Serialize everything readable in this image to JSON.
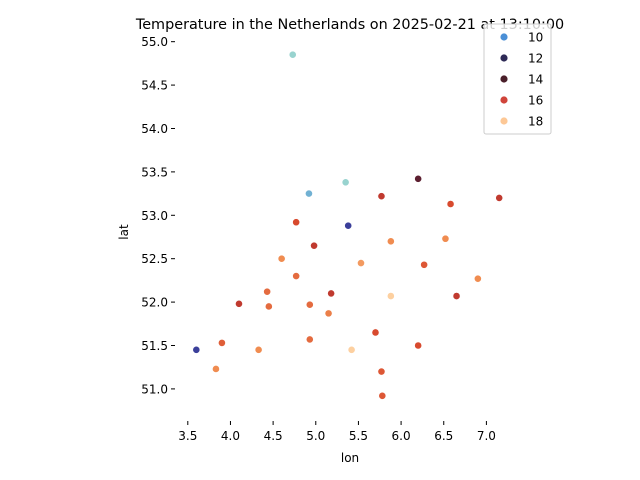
{
  "chart_data": {
    "type": "scatter",
    "title": "Temperature in the Netherlands on 2025-02-21 at 13:10:00",
    "xlabel": "lon",
    "ylabel": "lat",
    "xlim": [
      3.35,
      7.3
    ],
    "ylim": [
      50.78,
      55.1
    ],
    "xticks": [
      3.5,
      4.0,
      4.5,
      5.0,
      5.5,
      6.0,
      6.5,
      7.0
    ],
    "xtick_labels": [
      "3.5",
      "4.0",
      "4.5",
      "5.0",
      "5.5",
      "6.0",
      "6.5",
      "7.0"
    ],
    "yticks": [
      51.0,
      51.5,
      52.0,
      52.5,
      53.0,
      53.5,
      54.0,
      54.5,
      55.0
    ],
    "ytick_labels": [
      "51.0",
      "51.5",
      "52.0",
      "52.5",
      "53.0",
      "53.5",
      "54.0",
      "54.5",
      "55.0"
    ],
    "grid": false,
    "legend_position": "top-right",
    "color_scale": {
      "stops": [
        {
          "value": 9,
          "color": "#3a7fd0"
        },
        {
          "value": 10,
          "color": "#4a8fd6"
        },
        {
          "value": 11,
          "color": "#98d3cf"
        },
        {
          "value": 12,
          "color": "#3b3f9a"
        },
        {
          "value": 13,
          "color": "#4a2a4f"
        },
        {
          "value": 14,
          "color": "#5c1f30"
        },
        {
          "value": 15,
          "color": "#a82a30"
        },
        {
          "value": 16,
          "color": "#d84a2e"
        },
        {
          "value": 17,
          "color": "#f08c50"
        },
        {
          "value": 18,
          "color": "#fdd0a0"
        }
      ]
    },
    "legend_entries": [
      {
        "label": "10",
        "color": "#4a8fd6"
      },
      {
        "label": "12",
        "color": "#2e2a56"
      },
      {
        "label": "14",
        "color": "#4a1f2a"
      },
      {
        "label": "16",
        "color": "#d0443a"
      },
      {
        "label": "18",
        "color": "#fdc896"
      }
    ],
    "points": [
      {
        "lon": 4.73,
        "lat": 54.85,
        "temp": 11.0
      },
      {
        "lon": 6.2,
        "lat": 53.42,
        "temp": 14.0
      },
      {
        "lon": 5.35,
        "lat": 53.38,
        "temp": 11.0
      },
      {
        "lon": 4.92,
        "lat": 53.25,
        "temp": 10.5
      },
      {
        "lon": 5.77,
        "lat": 53.22,
        "temp": 15.5
      },
      {
        "lon": 7.15,
        "lat": 53.2,
        "temp": 15.5
      },
      {
        "lon": 6.58,
        "lat": 53.13,
        "temp": 16.0
      },
      {
        "lon": 4.77,
        "lat": 52.92,
        "temp": 16.0
      },
      {
        "lon": 5.38,
        "lat": 52.88,
        "temp": 12.0
      },
      {
        "lon": 5.88,
        "lat": 52.7,
        "temp": 17.0
      },
      {
        "lon": 6.52,
        "lat": 52.73,
        "temp": 17.0
      },
      {
        "lon": 4.98,
        "lat": 52.65,
        "temp": 15.5
      },
      {
        "lon": 4.6,
        "lat": 52.5,
        "temp": 17.0
      },
      {
        "lon": 5.53,
        "lat": 52.45,
        "temp": 17.2
      },
      {
        "lon": 6.27,
        "lat": 52.43,
        "temp": 16.2
      },
      {
        "lon": 4.77,
        "lat": 52.3,
        "temp": 16.5
      },
      {
        "lon": 6.9,
        "lat": 52.27,
        "temp": 17.0
      },
      {
        "lon": 4.43,
        "lat": 52.12,
        "temp": 16.5
      },
      {
        "lon": 5.18,
        "lat": 52.1,
        "temp": 15.5
      },
      {
        "lon": 5.88,
        "lat": 52.07,
        "temp": 18.0
      },
      {
        "lon": 6.65,
        "lat": 52.07,
        "temp": 15.5
      },
      {
        "lon": 4.1,
        "lat": 51.98,
        "temp": 15.5
      },
      {
        "lon": 4.93,
        "lat": 51.97,
        "temp": 16.5
      },
      {
        "lon": 4.45,
        "lat": 51.95,
        "temp": 16.5
      },
      {
        "lon": 5.15,
        "lat": 51.87,
        "temp": 16.8
      },
      {
        "lon": 5.7,
        "lat": 51.65,
        "temp": 16.0
      },
      {
        "lon": 4.93,
        "lat": 51.57,
        "temp": 16.5
      },
      {
        "lon": 3.9,
        "lat": 51.53,
        "temp": 16.3
      },
      {
        "lon": 6.2,
        "lat": 51.5,
        "temp": 16.0
      },
      {
        "lon": 3.6,
        "lat": 51.45,
        "temp": 12.0
      },
      {
        "lon": 4.33,
        "lat": 51.45,
        "temp": 17.0
      },
      {
        "lon": 5.42,
        "lat": 51.45,
        "temp": 18.0
      },
      {
        "lon": 3.83,
        "lat": 51.23,
        "temp": 17.0
      },
      {
        "lon": 5.77,
        "lat": 51.2,
        "temp": 16.2
      },
      {
        "lon": 5.78,
        "lat": 50.92,
        "temp": 16.2
      }
    ]
  }
}
